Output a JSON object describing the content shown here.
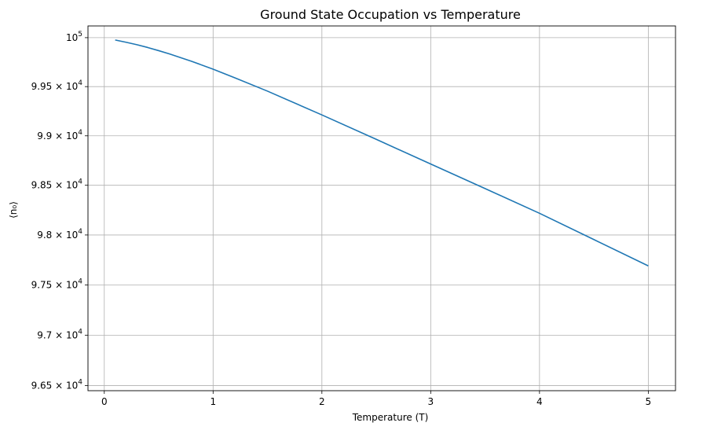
{
  "chart_data": {
    "type": "line",
    "title": "Ground State Occupation vs Temperature",
    "xlabel": "Temperature (T)",
    "ylabel": "⟨n₀⟩",
    "xlim": [
      -0.15,
      5.25
    ],
    "ylim": [
      96450,
      100120
    ],
    "yscale": "log",
    "grid": true,
    "x_ticks": [
      0,
      1,
      2,
      3,
      4,
      5
    ],
    "x_tick_labels": [
      "0",
      "1",
      "2",
      "3",
      "4",
      "5"
    ],
    "y_ticks": [
      {
        "value": 100000,
        "mantissa": "",
        "exponent": "5"
      },
      {
        "value": 99500,
        "mantissa": "9.95",
        "exponent": "4"
      },
      {
        "value": 99000,
        "mantissa": "9.9",
        "exponent": "4"
      },
      {
        "value": 98500,
        "mantissa": "9.85",
        "exponent": "4"
      },
      {
        "value": 98000,
        "mantissa": "9.8",
        "exponent": "4"
      },
      {
        "value": 97500,
        "mantissa": "9.75",
        "exponent": "4"
      },
      {
        "value": 97000,
        "mantissa": "9.7",
        "exponent": "4"
      },
      {
        "value": 96500,
        "mantissa": "9.65",
        "exponent": "4"
      }
    ],
    "series": [
      {
        "color": "#1f77b4",
        "x": [
          0.1,
          0.2,
          0.3,
          0.4,
          0.5,
          0.6,
          0.8,
          1.0,
          1.2,
          1.5,
          2.0,
          2.5,
          3.0,
          3.5,
          4.0,
          4.5,
          5.0
        ],
        "y": [
          99976,
          99953,
          99928,
          99899,
          99867,
          99833,
          99759,
          99678,
          99590,
          99454,
          99212,
          98964,
          98715,
          98467,
          98218,
          97954,
          97690
        ]
      }
    ]
  }
}
